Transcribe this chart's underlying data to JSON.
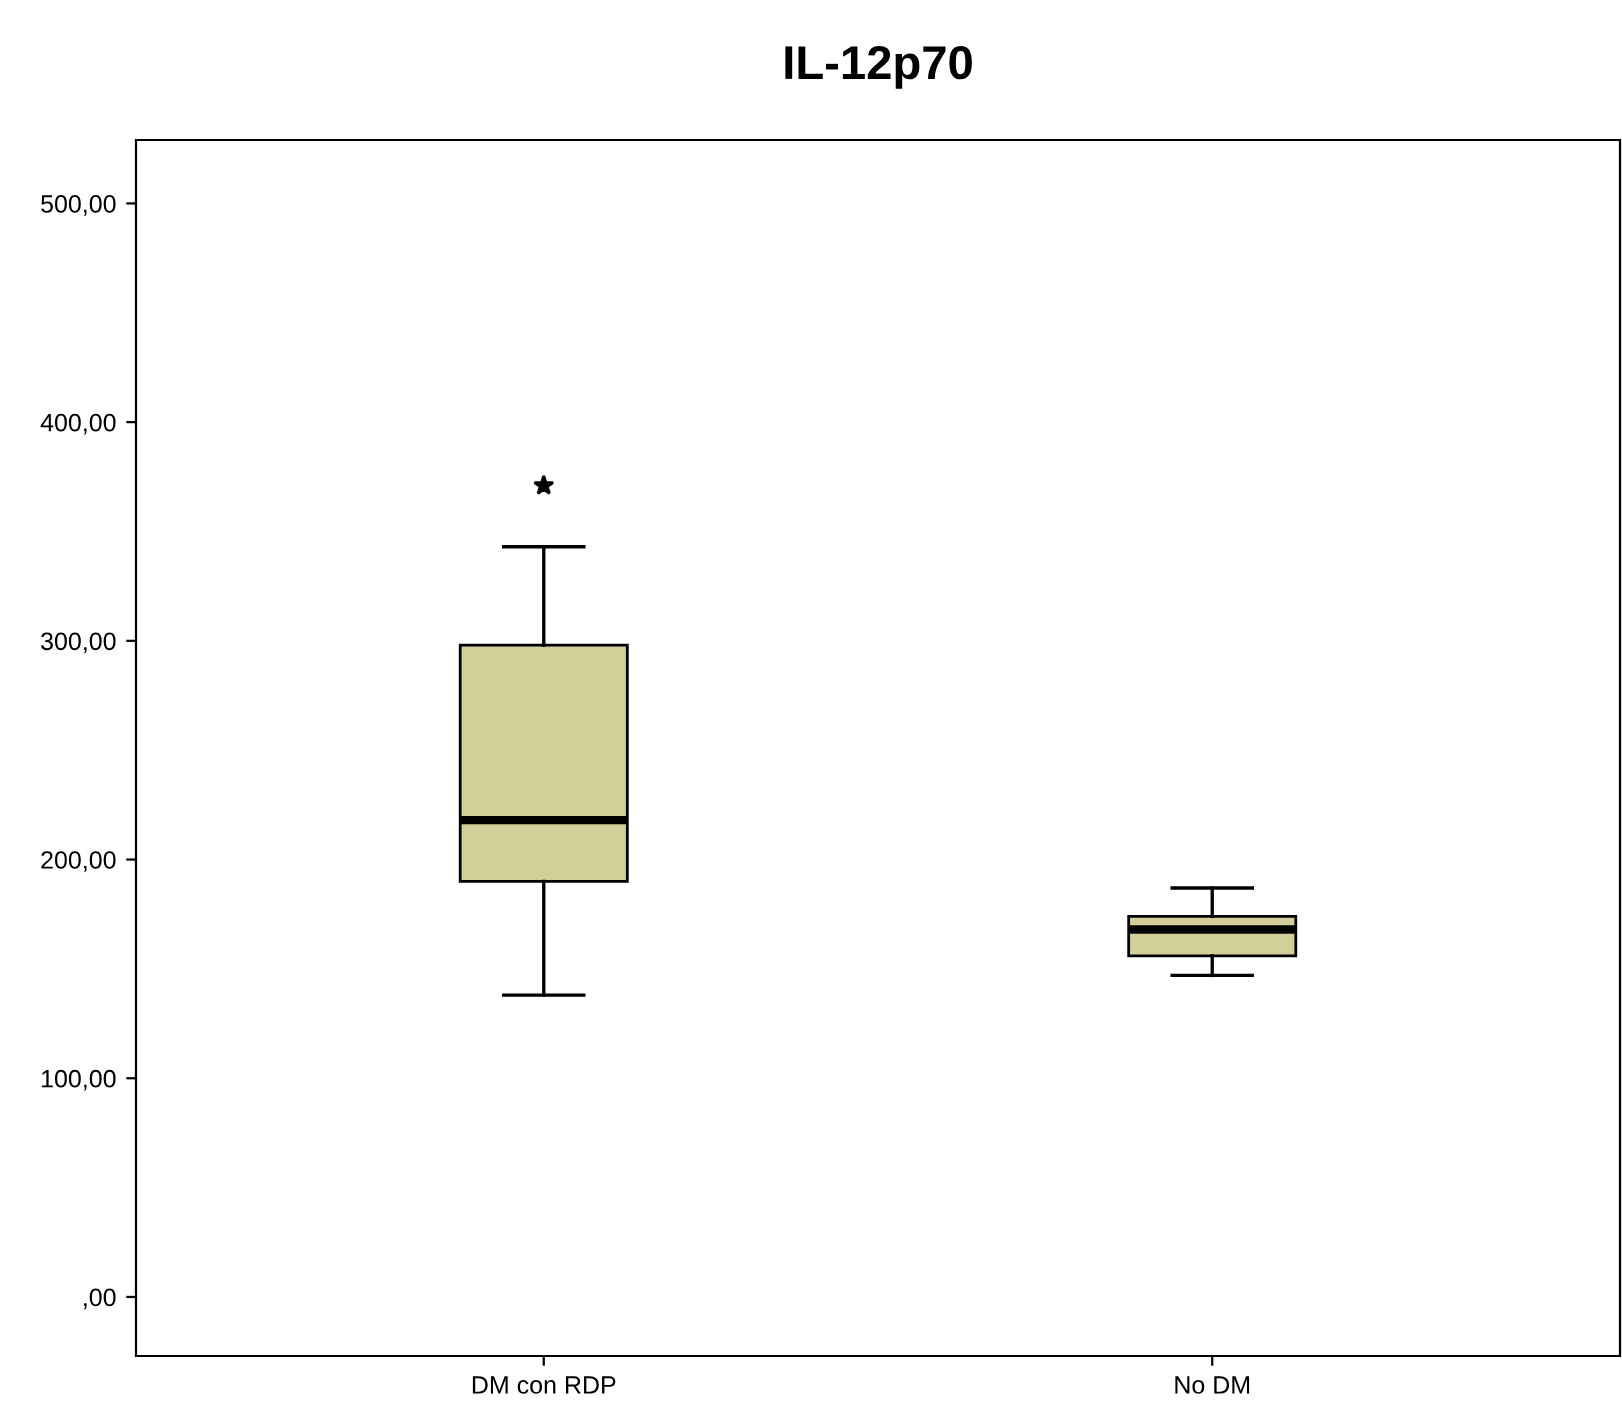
{
  "chart_data": {
    "type": "box",
    "title": "IL-12p70",
    "categories": [
      "DM con RDP",
      "No DM"
    ],
    "boxes": [
      {
        "low": 138,
        "q1": 190,
        "median": 218,
        "q3": 298,
        "high": 343,
        "outliers": [
          371
        ]
      },
      {
        "low": 147,
        "q1": 156,
        "median": 168,
        "q3": 174,
        "high": 187
      }
    ],
    "color": "#d3cf98",
    "ylim": [
      -27,
      529
    ],
    "yticks": [
      {
        "value": 0,
        "label": ",00"
      },
      {
        "value": 100,
        "label": "100,00"
      },
      {
        "value": 200,
        "label": "200,00"
      },
      {
        "value": 300,
        "label": "300,00"
      },
      {
        "value": 400,
        "label": "400,00"
      },
      {
        "value": 500,
        "label": "500,00"
      }
    ],
    "grid": false
  }
}
